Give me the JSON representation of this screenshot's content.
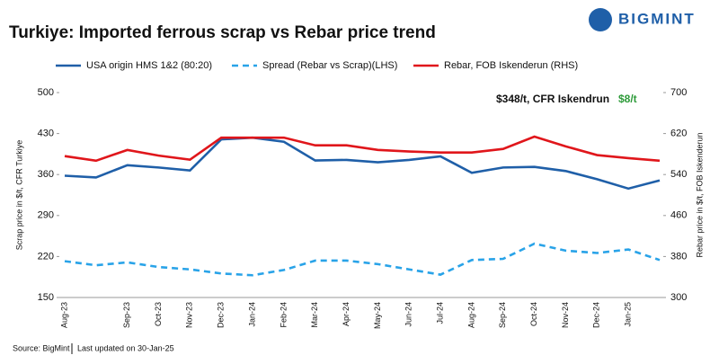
{
  "brand": "BIGMINT",
  "source": "Source: BigMint",
  "updated": "Last updated on 30-Jan-25",
  "chart_data": {
    "type": "line",
    "title": "Turkiye: Imported ferrous scrap vs Rebar price trend",
    "y_label": "Scrap price in $/t, CFR Turkiye",
    "y2_label": "Rebar price in $/t, FOB Iskenderun",
    "annotation": "$348/t, CFR Iskendrun",
    "annotation_change": "$8/t",
    "categories": [
      "Aug-23",
      null,
      "Sep-23",
      "Oct-23",
      "Nov-23",
      "Dec-23",
      "Jan-24",
      "Feb-24",
      "Mar-24",
      "Apr-24",
      "May-24",
      "Jun-24",
      "Jul-24",
      "Aug-24",
      "Sep-24",
      "Oct-24",
      "Nov-24",
      "Dec-24",
      "Jan-25",
      null
    ],
    "series": [
      {
        "name": "USA origin HMS 1&2 (80:20)",
        "color": "#1f5fa8",
        "dash": false,
        "axis": "y",
        "values": [
          358,
          355,
          376,
          372,
          367,
          420,
          423,
          416,
          384,
          385,
          381,
          385,
          391,
          363,
          372,
          373,
          366,
          352,
          336,
          350
        ]
      },
      {
        "name": "Spread (Rebar vs Scrap)(LHS)",
        "color": "#29a3e8",
        "dash": true,
        "axis": "y",
        "values": [
          212,
          205,
          210,
          202,
          198,
          191,
          188,
          197,
          213,
          213,
          207,
          198,
          189,
          214,
          216,
          242,
          230,
          226,
          232,
          214
        ]
      },
      {
        "name": "Rebar, FOB Iskenderun (RHS)",
        "color": "#e0161b",
        "dash": false,
        "axis": "y2",
        "values": [
          576,
          567,
          588,
          577,
          569,
          612,
          612,
          612,
          597,
          597,
          588,
          585,
          583,
          583,
          590,
          614,
          595,
          578,
          572,
          567
        ]
      }
    ],
    "ylim": [
      150,
      500
    ],
    "yticks": [
      150,
      220,
      290,
      360,
      430,
      500
    ],
    "y2lim": [
      300,
      700
    ],
    "y2ticks": [
      300,
      380,
      460,
      540,
      620,
      700
    ]
  }
}
